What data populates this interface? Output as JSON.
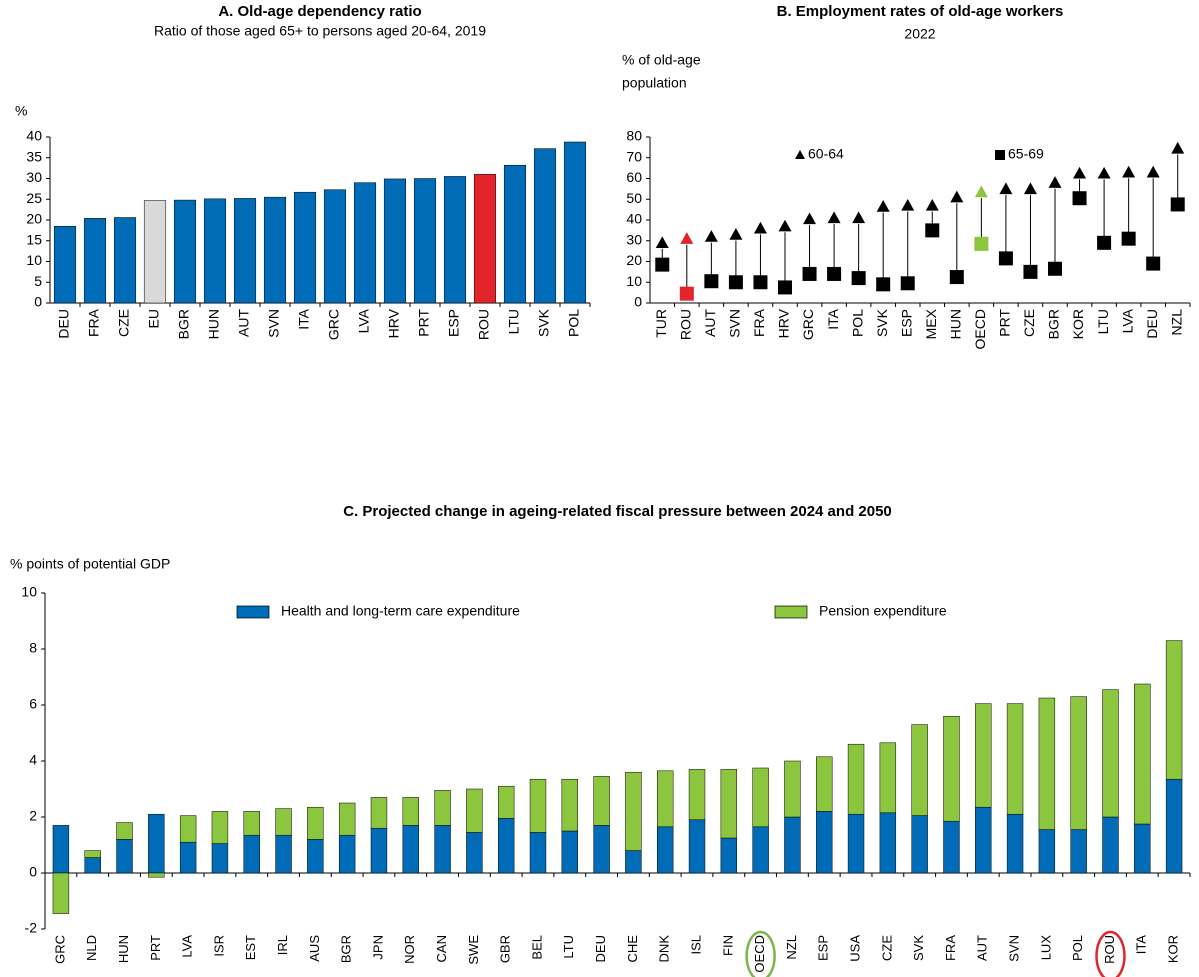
{
  "chart_data": [
    {
      "type": "bar",
      "title": "A. Old-age dependency ratio",
      "subtitle": "Ratio of those aged 65+ to persons aged 20-64, 2019",
      "ylabel": [
        "%"
      ],
      "categories": [
        "DEU",
        "FRA",
        "CZE",
        "EU",
        "BGR",
        "HUN",
        "AUT",
        "SVN",
        "ITA",
        "GRC",
        "LVA",
        "HRV",
        "PRT",
        "ESP",
        "ROU",
        "LTU",
        "SVK",
        "POL"
      ],
      "values": [
        18.5,
        20.4,
        20.6,
        24.7,
        24.8,
        25.1,
        25.2,
        25.5,
        26.7,
        27.3,
        29.0,
        29.9,
        30.0,
        30.5,
        31.0,
        33.2,
        37.2,
        38.8
      ],
      "colors": [
        "#006bb6",
        "#006bb6",
        "#006bb6",
        "#d9d9d9",
        "#006bb6",
        "#006bb6",
        "#006bb6",
        "#006bb6",
        "#006bb6",
        "#006bb6",
        "#006bb6",
        "#006bb6",
        "#006bb6",
        "#006bb6",
        "#e3242b",
        "#006bb6",
        "#006bb6",
        "#006bb6"
      ],
      "ylim": [
        0,
        40
      ],
      "yticks": [
        0,
        5,
        10,
        15,
        20,
        25,
        30,
        35,
        40
      ]
    },
    {
      "type": "range",
      "title": "B. Employment rates of old-age workers",
      "subtitle": "2022",
      "ylabel": [
        "%  of old-age",
        "population"
      ],
      "categories": [
        "TUR",
        "ROU",
        "AUT",
        "SVN",
        "FRA",
        "HRV",
        "GRC",
        "ITA",
        "POL",
        "SVK",
        "ESP",
        "MEX",
        "HUN",
        "OECD",
        "PRT",
        "CZE",
        "BGR",
        "KOR",
        "LTU",
        "LVA",
        "DEU",
        "NZL"
      ],
      "series": [
        {
          "name": "60-64",
          "marker": "triangle",
          "color": "#000000",
          "values": [
            29,
            31,
            32,
            33,
            36,
            37,
            40.5,
            41,
            41,
            46.5,
            47,
            47,
            51,
            53.5,
            55,
            55,
            58,
            62.5,
            62.5,
            63,
            63,
            74.5
          ]
        },
        {
          "name": "65-69",
          "marker": "square",
          "color": "#000000",
          "values": [
            18.5,
            4.5,
            10.5,
            10,
            10,
            7.5,
            14,
            14,
            12,
            9,
            9.5,
            35,
            12.5,
            28.5,
            21.5,
            15,
            16.5,
            50.5,
            29,
            31,
            19,
            47.5
          ]
        }
      ],
      "colors": [
        "#000000",
        "#e3242b",
        "#000000",
        "#000000",
        "#000000",
        "#000000",
        "#000000",
        "#000000",
        "#000000",
        "#000000",
        "#000000",
        "#000000",
        "#000000",
        "#8cc63f",
        "#000000",
        "#000000",
        "#000000",
        "#000000",
        "#000000",
        "#000000",
        "#000000",
        "#000000"
      ],
      "ylim": [
        0,
        80
      ],
      "yticks": [
        0,
        10,
        20,
        30,
        40,
        50,
        60,
        70,
        80
      ]
    },
    {
      "type": "stacked_bar",
      "title": "C. Projected change in ageing-related fiscal pressure between 2024 and 2050",
      "ylabel": [
        "% points of potential GDP"
      ],
      "categories": [
        "GRC",
        "NLD",
        "HUN",
        "PRT",
        "LVA",
        "ISR",
        "EST",
        "IRL",
        "AUS",
        "BGR",
        "JPN",
        "NOR",
        "CAN",
        "SWE",
        "GBR",
        "BEL",
        "LTU",
        "DEU",
        "CHE",
        "DNK",
        "ISL",
        "FIN",
        "OECD",
        "NZL",
        "ESP",
        "USA",
        "CZE",
        "SVK",
        "FRA",
        "AUT",
        "SVN",
        "LUX",
        "POL",
        "ROU",
        "ITA",
        "KOR"
      ],
      "series": [
        {
          "name": "Health and long-term care expenditure",
          "color": "#006bb6",
          "values": [
            1.7,
            0.55,
            1.2,
            2.1,
            1.1,
            1.05,
            1.35,
            1.35,
            1.2,
            1.35,
            1.6,
            1.7,
            1.7,
            1.45,
            1.95,
            1.45,
            1.5,
            1.7,
            0.8,
            1.65,
            1.9,
            1.25,
            1.65,
            2.0,
            2.2,
            2.1,
            2.15,
            2.05,
            1.85,
            2.35,
            2.1,
            1.55,
            1.55,
            2.0,
            1.75,
            3.35
          ]
        },
        {
          "name": "Pension expenditure",
          "color": "#8cc63f",
          "values": [
            -1.45,
            0.25,
            0.6,
            -0.15,
            0.95,
            1.15,
            0.85,
            0.95,
            1.15,
            1.15,
            1.1,
            1.0,
            1.25,
            1.55,
            1.15,
            1.9,
            1.85,
            1.75,
            2.8,
            2.0,
            1.8,
            2.45,
            2.1,
            2.0,
            1.95,
            2.5,
            2.5,
            3.25,
            3.75,
            3.7,
            3.95,
            4.7,
            4.75,
            4.55,
            5.0,
            4.95
          ]
        }
      ],
      "circled": [
        {
          "category_index": 22,
          "color": "#7ab648"
        },
        {
          "category_index": 33,
          "color": "#e3242b"
        }
      ],
      "ylim": [
        -2,
        10
      ],
      "yticks": [
        -2,
        0,
        2,
        4,
        6,
        8,
        10
      ]
    }
  ]
}
